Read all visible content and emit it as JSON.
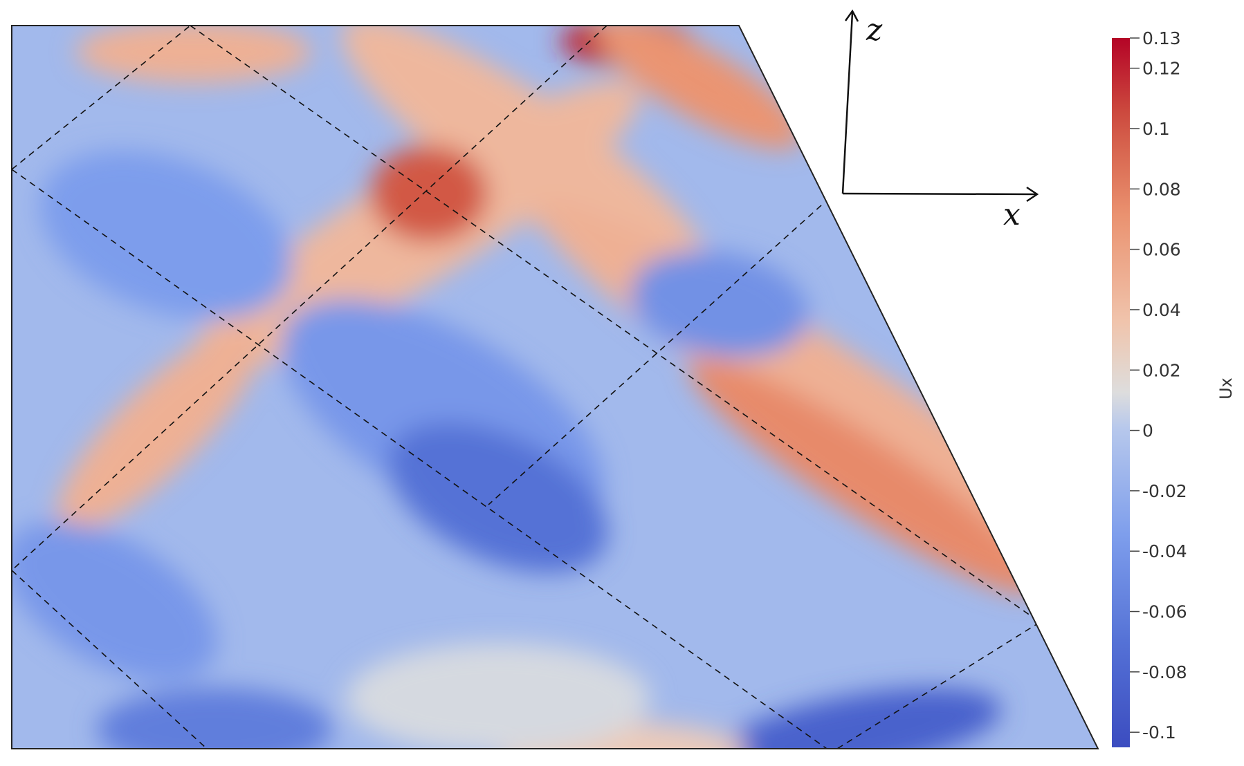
{
  "chart_data": {
    "type": "heatmap",
    "field": "Ux",
    "colormap": "cool-to-warm",
    "colors": {
      "min": "#3b4cc0",
      "mid": "#dddddd",
      "max": "#b40426",
      "wave_lines": "#111111"
    },
    "color_range": [
      -0.105,
      0.13
    ],
    "colorbar": {
      "title": "Ux",
      "ticks": [
        0.13,
        0.12,
        0.1,
        0.08,
        0.06,
        0.04,
        0.02,
        0,
        -0.02,
        -0.04,
        -0.06,
        -0.08,
        -0.1
      ],
      "tick_labels": [
        "0.13",
        "0.12",
        "0.1",
        "0.08",
        "0.06",
        "0.04",
        "0.02",
        "0",
        "-0.02",
        "-0.04",
        "-0.06",
        "-0.08",
        "-0.1"
      ]
    },
    "axes": {
      "horizontal": "x",
      "vertical": "z"
    },
    "annotations": [
      "dashed lines tracing the wave-beam paths"
    ],
    "extrema": [
      {
        "label": "strong positive spot near top edge",
        "value": 0.13
      },
      {
        "label": "positive crossing at upper centre",
        "value": 0.11
      },
      {
        "label": "negative minimum near bottom right",
        "value": -0.1
      }
    ]
  }
}
